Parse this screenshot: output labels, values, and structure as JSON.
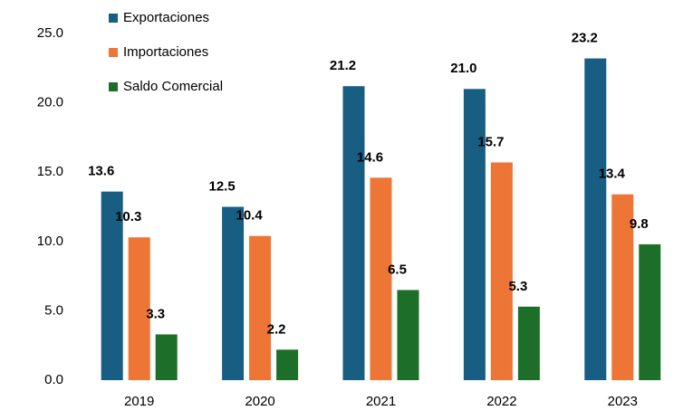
{
  "chart_data": {
    "type": "bar",
    "categories": [
      "2019",
      "2020",
      "2021",
      "2022",
      "2023"
    ],
    "series": [
      {
        "name": "Exportaciones",
        "color": "#175e82",
        "values": [
          13.6,
          12.5,
          21.2,
          21.0,
          23.2
        ],
        "value_labels": [
          "13.6",
          "12.5",
          "21.2",
          "21.0",
          "23.2"
        ]
      },
      {
        "name": "Importaciones",
        "color": "#ed7535",
        "values": [
          10.3,
          10.4,
          14.6,
          15.7,
          13.4
        ],
        "value_labels": [
          "10.3",
          "10.4",
          "14.6",
          "15.7",
          "13.4"
        ]
      },
      {
        "name": "Saldo Comercial",
        "color": "#1d6e28",
        "values": [
          3.3,
          2.2,
          6.5,
          5.3,
          9.8
        ],
        "value_labels": [
          "3.3",
          "2.2",
          "6.5",
          "5.3",
          "9.8"
        ]
      }
    ],
    "ylim": [
      0,
      25
    ],
    "yticks": [
      {
        "value": 0,
        "label": "0.0"
      },
      {
        "value": 5,
        "label": "5.0"
      },
      {
        "value": 10,
        "label": "10.0"
      },
      {
        "value": 15,
        "label": "15.0"
      },
      {
        "value": 20,
        "label": "20.0"
      },
      {
        "value": 25,
        "label": "25.0"
      }
    ],
    "grid": false,
    "legend": "top-left"
  }
}
